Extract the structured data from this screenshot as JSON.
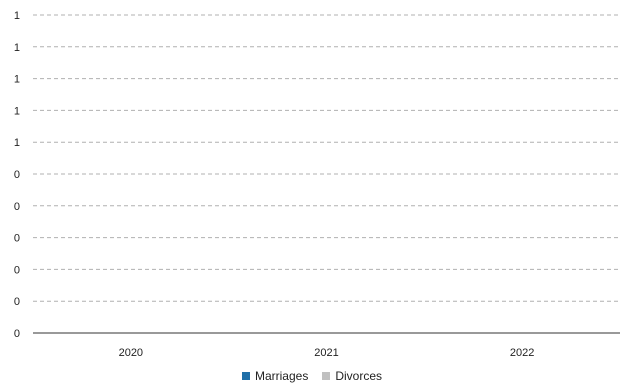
{
  "chart_data": {
    "type": "bar",
    "categories": [
      "2020",
      "2021",
      "2022"
    ],
    "series": [
      {
        "name": "Marriages",
        "color": "#1f6fa8",
        "values": [
          0,
          0,
          0
        ]
      },
      {
        "name": "Divorces",
        "color": "#c0c0c0",
        "values": [
          0,
          0,
          0
        ]
      }
    ],
    "ylim": [
      0,
      1
    ],
    "y_tick_labels": [
      "0",
      "0",
      "0",
      "0",
      "0",
      "0",
      "1",
      "1",
      "1",
      "1",
      "1"
    ],
    "grid": true,
    "grid_style": "dashed",
    "legend": "bottom-center"
  }
}
